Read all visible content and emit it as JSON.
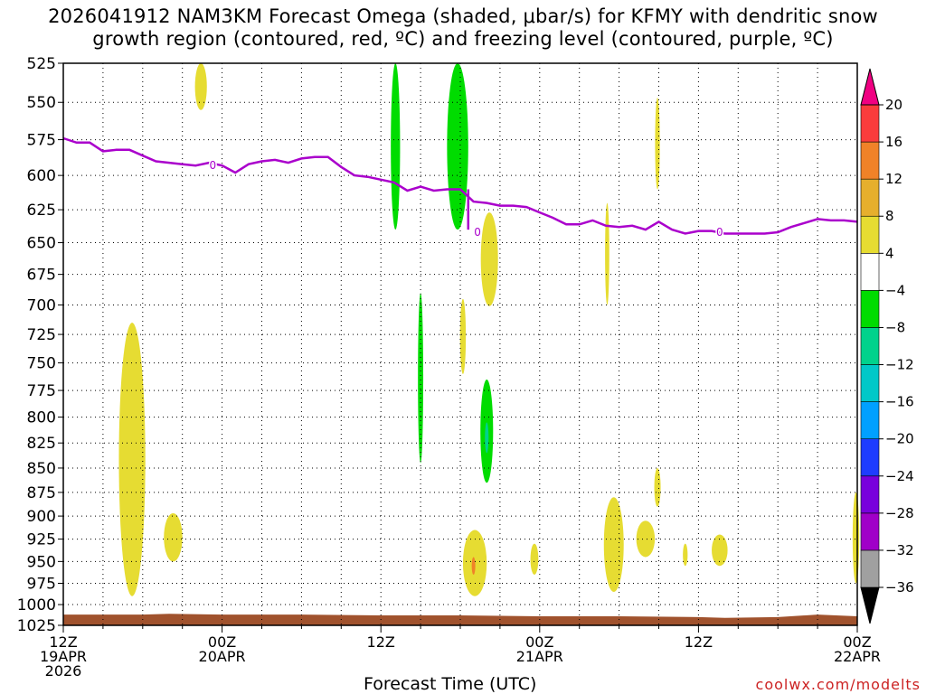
{
  "title": {
    "line1": "2026041912 NAM3KM Forecast Omega (shaded, μbar/s) for KFMY with dendritic snow",
    "line2": "growth region (contoured, red, ºC) and freezing level (contoured, purple, ºC)"
  },
  "xlabel": "Forecast Time (UTC)",
  "credit": "coolwx.com/modelts",
  "chart_data": {
    "type": "heatmap",
    "x_unit": "forecast hours from 2026-04-19 12Z",
    "xlim": [
      0,
      60
    ],
    "ylim": [
      1025,
      525
    ],
    "y_scale": "log-pressure (hPa)",
    "grid": true,
    "y_ticks": [
      525,
      550,
      575,
      600,
      625,
      650,
      675,
      700,
      725,
      750,
      775,
      800,
      825,
      850,
      875,
      900,
      925,
      950,
      975,
      1000,
      1025
    ],
    "x_ticks": [
      {
        "x": 0,
        "lines": [
          "12Z",
          "19APR",
          "2026"
        ]
      },
      {
        "x": 12,
        "lines": [
          "00Z",
          "20APR"
        ]
      },
      {
        "x": 24,
        "lines": [
          "12Z"
        ]
      },
      {
        "x": 36,
        "lines": [
          "00Z",
          "21APR"
        ]
      },
      {
        "x": 48,
        "lines": [
          "12Z"
        ]
      },
      {
        "x": 60,
        "lines": [
          "00Z",
          "22APR"
        ]
      }
    ],
    "colorbar": {
      "levels": [
        -36,
        -32,
        -28,
        -24,
        -20,
        -16,
        -12,
        -8,
        -4,
        4,
        8,
        12,
        16,
        20
      ],
      "colors": [
        "#000000",
        "#a0a0a0",
        "#a000c8",
        "#7800dc",
        "#1e3cff",
        "#00a0ff",
        "#00c8c8",
        "#00d28c",
        "#00dc00",
        "#ffffff",
        "#e6dc32",
        "#e6af2d",
        "#f08228",
        "#fa3c3c",
        "#f00082"
      ]
    },
    "freezing_level": {
      "label": "0",
      "color": "#aa00cc",
      "points": [
        [
          0,
          574
        ],
        [
          1,
          577
        ],
        [
          2,
          577
        ],
        [
          3,
          583
        ],
        [
          4,
          582
        ],
        [
          5,
          582
        ],
        [
          6,
          586
        ],
        [
          7,
          590
        ],
        [
          8,
          591
        ],
        [
          9,
          592
        ],
        [
          10,
          593
        ],
        [
          11,
          591
        ],
        [
          12,
          593
        ],
        [
          13,
          598
        ],
        [
          14,
          592
        ],
        [
          15,
          590
        ],
        [
          16,
          589
        ],
        [
          17,
          591
        ],
        [
          18,
          588
        ],
        [
          19,
          587
        ],
        [
          20,
          587
        ],
        [
          21,
          594
        ],
        [
          22,
          600
        ],
        [
          23,
          601
        ],
        [
          24,
          603
        ],
        [
          25,
          605
        ],
        [
          26,
          611
        ],
        [
          27,
          608
        ],
        [
          28,
          611
        ],
        [
          29,
          610
        ],
        [
          30,
          610
        ],
        [
          31,
          619
        ],
        [
          32,
          620
        ],
        [
          33,
          622
        ],
        [
          34,
          622
        ],
        [
          35,
          623
        ],
        [
          36,
          627
        ],
        [
          37,
          631
        ],
        [
          38,
          636
        ],
        [
          39,
          636
        ],
        [
          40,
          633
        ],
        [
          41,
          637
        ],
        [
          42,
          638
        ],
        [
          43,
          637
        ],
        [
          44,
          640
        ],
        [
          45,
          634
        ],
        [
          46,
          640
        ],
        [
          47,
          643
        ],
        [
          48,
          641
        ],
        [
          49,
          641
        ],
        [
          50,
          643
        ],
        [
          51,
          643
        ],
        [
          52,
          643
        ],
        [
          53,
          643
        ],
        [
          54,
          642
        ],
        [
          55,
          638
        ],
        [
          56,
          635
        ],
        [
          57,
          632
        ],
        [
          58,
          633
        ],
        [
          59,
          633
        ],
        [
          60,
          634
        ]
      ],
      "label_positions": [
        [
          11.3,
          593
        ],
        [
          31.3,
          642
        ],
        [
          49.6,
          642
        ]
      ]
    },
    "omega_regions": [
      {
        "level": "4 to 8",
        "x": 10.4,
        "p": [
          525,
          555
        ],
        "width_h": 0.45
      },
      {
        "level": "-8 to -4",
        "x": 25.1,
        "p": [
          525,
          640
        ],
        "width_h": 0.35
      },
      {
        "level": "-8 to -4",
        "x": 29.8,
        "p": [
          525,
          640
        ],
        "width_h": 0.8
      },
      {
        "level": "4 to 8",
        "x": 32.2,
        "p": [
          627,
          701
        ],
        "width_h": 0.65
      },
      {
        "level": "4 to 8",
        "x": 30.2,
        "p": [
          695,
          760
        ],
        "width_h": 0.22
      },
      {
        "level": "-8 to -4",
        "x": 27.0,
        "p": [
          690,
          845
        ],
        "width_h": 0.2
      },
      {
        "level": "-8 to -4",
        "x": 32.0,
        "p": [
          765,
          865
        ],
        "width_h": 0.48
      },
      {
        "level": "-12 to -8",
        "x": 32.0,
        "p": [
          805,
          835
        ],
        "width_h": 0.12
      },
      {
        "level": "4 to 8",
        "x": 5.2,
        "p": [
          715,
          990
        ],
        "width_h": 1.0
      },
      {
        "level": "4 to 8",
        "x": 8.3,
        "p": [
          897,
          950
        ],
        "width_h": 0.7
      },
      {
        "level": "4 to 8",
        "x": 31.1,
        "p": [
          915,
          990
        ],
        "width_h": 0.9
      },
      {
        "level": "8 to 12",
        "x": 31.0,
        "p": [
          945,
          965
        ],
        "width_h": 0.1
      },
      {
        "level": "4 to 8",
        "x": 35.6,
        "p": [
          930,
          965
        ],
        "width_h": 0.3
      },
      {
        "level": "4 to 8",
        "x": 41.1,
        "p": [
          620,
          700
        ],
        "width_h": 0.16
      },
      {
        "level": "4 to 8",
        "x": 44.9,
        "p": [
          547,
          610
        ],
        "width_h": 0.18
      },
      {
        "level": "4 to 8",
        "x": 41.6,
        "p": [
          880,
          985
        ],
        "width_h": 0.75
      },
      {
        "level": "4 to 8",
        "x": 44.9,
        "p": [
          850,
          890
        ],
        "width_h": 0.24
      },
      {
        "level": "4 to 8",
        "x": 44.0,
        "p": [
          905,
          945
        ],
        "width_h": 0.7
      },
      {
        "level": "4 to 8",
        "x": 47.0,
        "p": [
          930,
          955
        ],
        "width_h": 0.18
      },
      {
        "level": "4 to 8",
        "x": 49.6,
        "p": [
          920,
          955
        ],
        "width_h": 0.6
      },
      {
        "level": "4 to 8",
        "x": 59.9,
        "p": [
          875,
          975
        ],
        "width_h": 0.25
      }
    ],
    "terrain": {
      "color": "#a0522d",
      "surface_p": [
        [
          0,
          1012
        ],
        [
          6,
          1012
        ],
        [
          8,
          1011
        ],
        [
          12,
          1012
        ],
        [
          18,
          1012
        ],
        [
          24,
          1013
        ],
        [
          30,
          1013
        ],
        [
          36,
          1014
        ],
        [
          42,
          1014
        ],
        [
          48,
          1015
        ],
        [
          50,
          1016
        ],
        [
          54,
          1015
        ],
        [
          57,
          1012
        ],
        [
          60,
          1014
        ]
      ]
    }
  }
}
